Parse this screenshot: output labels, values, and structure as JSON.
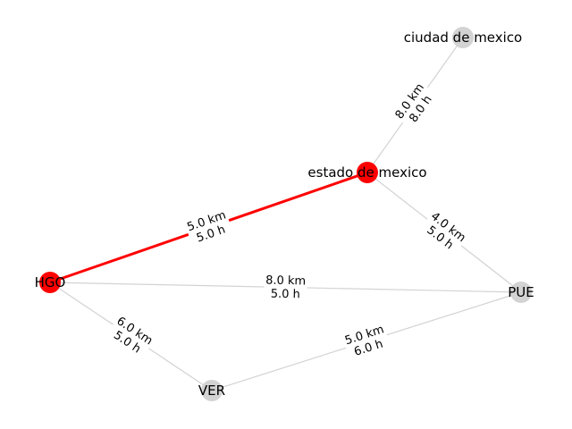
{
  "graph": {
    "colors": {
      "highlight": "#ff0000",
      "default_node": "#d3d3d3",
      "default_edge": "#d3d3d3",
      "label_bg": "#ffffff"
    },
    "nodes": [
      {
        "id": "cdmx",
        "label": "ciudad de mexico",
        "highlighted": false
      },
      {
        "id": "edomex",
        "label": "estado de mexico",
        "highlighted": true
      },
      {
        "id": "hgo",
        "label": "HGO",
        "highlighted": true
      },
      {
        "id": "pue",
        "label": "PUE",
        "highlighted": false
      },
      {
        "id": "ver",
        "label": "VER",
        "highlighted": false
      }
    ],
    "edges": [
      {
        "from": "cdmx",
        "to": "edomex",
        "distance": "8.0 km",
        "time": "8.0 h",
        "highlighted": false
      },
      {
        "from": "edomex",
        "to": "hgo",
        "distance": "5.0 km",
        "time": "5.0 h",
        "highlighted": true
      },
      {
        "from": "edomex",
        "to": "pue",
        "distance": "4.0 km",
        "time": "5.0 h",
        "highlighted": false
      },
      {
        "from": "hgo",
        "to": "pue",
        "distance": "8.0 km",
        "time": "5.0 h",
        "highlighted": false
      },
      {
        "from": "hgo",
        "to": "ver",
        "distance": "6.0 km",
        "time": "5.0 h",
        "highlighted": false
      },
      {
        "from": "ver",
        "to": "pue",
        "distance": "5.0 km",
        "time": "6.0 h",
        "highlighted": false
      }
    ]
  }
}
